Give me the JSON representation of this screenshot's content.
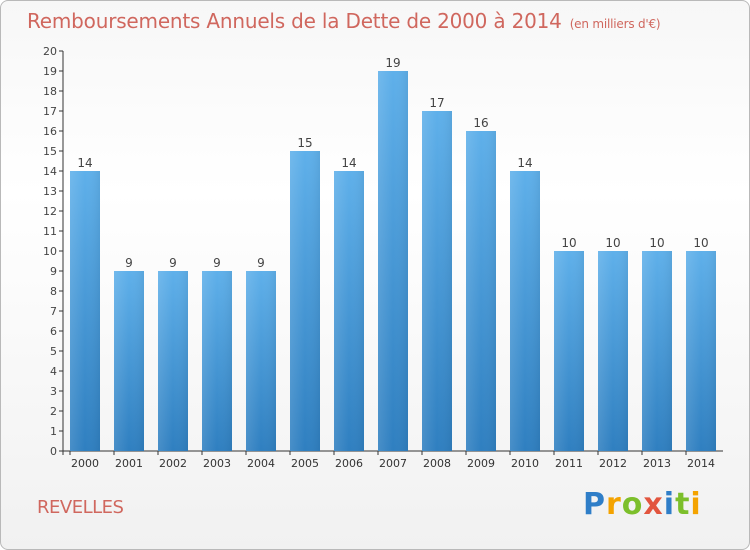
{
  "chart_data": {
    "type": "bar",
    "title": "Remboursements Annuels de la Dette de 2000 à 2014",
    "subtitle": "(en milliers d'€)",
    "categories": [
      "2000",
      "2001",
      "2002",
      "2003",
      "2004",
      "2005",
      "2006",
      "2007",
      "2008",
      "2009",
      "2010",
      "2011",
      "2012",
      "2013",
      "2014"
    ],
    "values": [
      14,
      9,
      9,
      9,
      9,
      15,
      14,
      19,
      17,
      16,
      14,
      10,
      10,
      10,
      10
    ],
    "ylim": [
      0,
      20
    ],
    "yticks": [
      0,
      1,
      2,
      3,
      4,
      5,
      6,
      7,
      8,
      9,
      10,
      11,
      12,
      13,
      14,
      15,
      16,
      17,
      18,
      19,
      20
    ],
    "ytick_labels": [
      "0",
      "1",
      "2",
      "3",
      "4",
      "5",
      "6",
      "7",
      "8",
      "9",
      "10",
      "11",
      "12",
      "13",
      "14",
      "15",
      "16",
      "17",
      "18",
      "19",
      "20"
    ],
    "grid": false,
    "bar_color": "#4a9fe0"
  },
  "footer": {
    "location": "REVELLES",
    "logo_letters": [
      {
        "char": "P",
        "color": "#2f7ec8"
      },
      {
        "char": "r",
        "color": "#f4a300"
      },
      {
        "char": "o",
        "color": "#7cbf2b"
      },
      {
        "char": "x",
        "color": "#e2553e"
      },
      {
        "char": "i",
        "color": "#2f7ec8"
      },
      {
        "char": "t",
        "color": "#7cbf2b"
      },
      {
        "char": "i",
        "color": "#f4a300"
      }
    ]
  }
}
